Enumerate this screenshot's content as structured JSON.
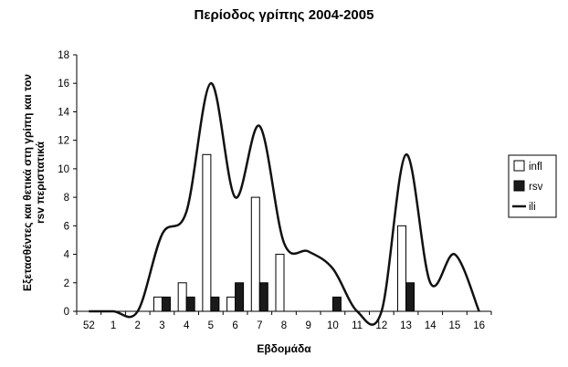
{
  "chart_data": {
    "type": "bar+line",
    "title": "Περίοδος γρίπης 2004-2005",
    "xlabel": "Εβδομάδα",
    "ylabel_lines": [
      "Εξετασθέντες και θετικά στη γρίπη και τον",
      "rsv περιστατικά"
    ],
    "categories": [
      "52",
      "1",
      "2",
      "3",
      "4",
      "5",
      "6",
      "7",
      "8",
      "9",
      "10",
      "11",
      "12",
      "13",
      "14",
      "15",
      "16"
    ],
    "ylim": [
      0,
      18
    ],
    "yticks": [
      "0",
      "2",
      "4",
      "6",
      "8",
      "10",
      "12",
      "14",
      "16",
      "18"
    ],
    "grid": false,
    "legend_position": "right",
    "series": [
      {
        "name": "infl",
        "type": "bar",
        "color": "#ffffff",
        "values": [
          0,
          0,
          0,
          1,
          2,
          11,
          1,
          8,
          4,
          0,
          0,
          0,
          0,
          6,
          0,
          0,
          0
        ]
      },
      {
        "name": "rsv",
        "type": "bar",
        "color": "#1a1a1a",
        "values": [
          0,
          0,
          0,
          1,
          1,
          1,
          2,
          2,
          0,
          0,
          1,
          0,
          0,
          2,
          0,
          0,
          0
        ]
      },
      {
        "name": "ili",
        "type": "line",
        "smooth": true,
        "color": "#111111",
        "values": [
          0,
          0,
          0,
          5.4,
          7,
          16,
          8,
          13,
          4.8,
          4.2,
          3,
          0,
          0,
          11,
          2,
          4,
          0
        ]
      }
    ]
  }
}
